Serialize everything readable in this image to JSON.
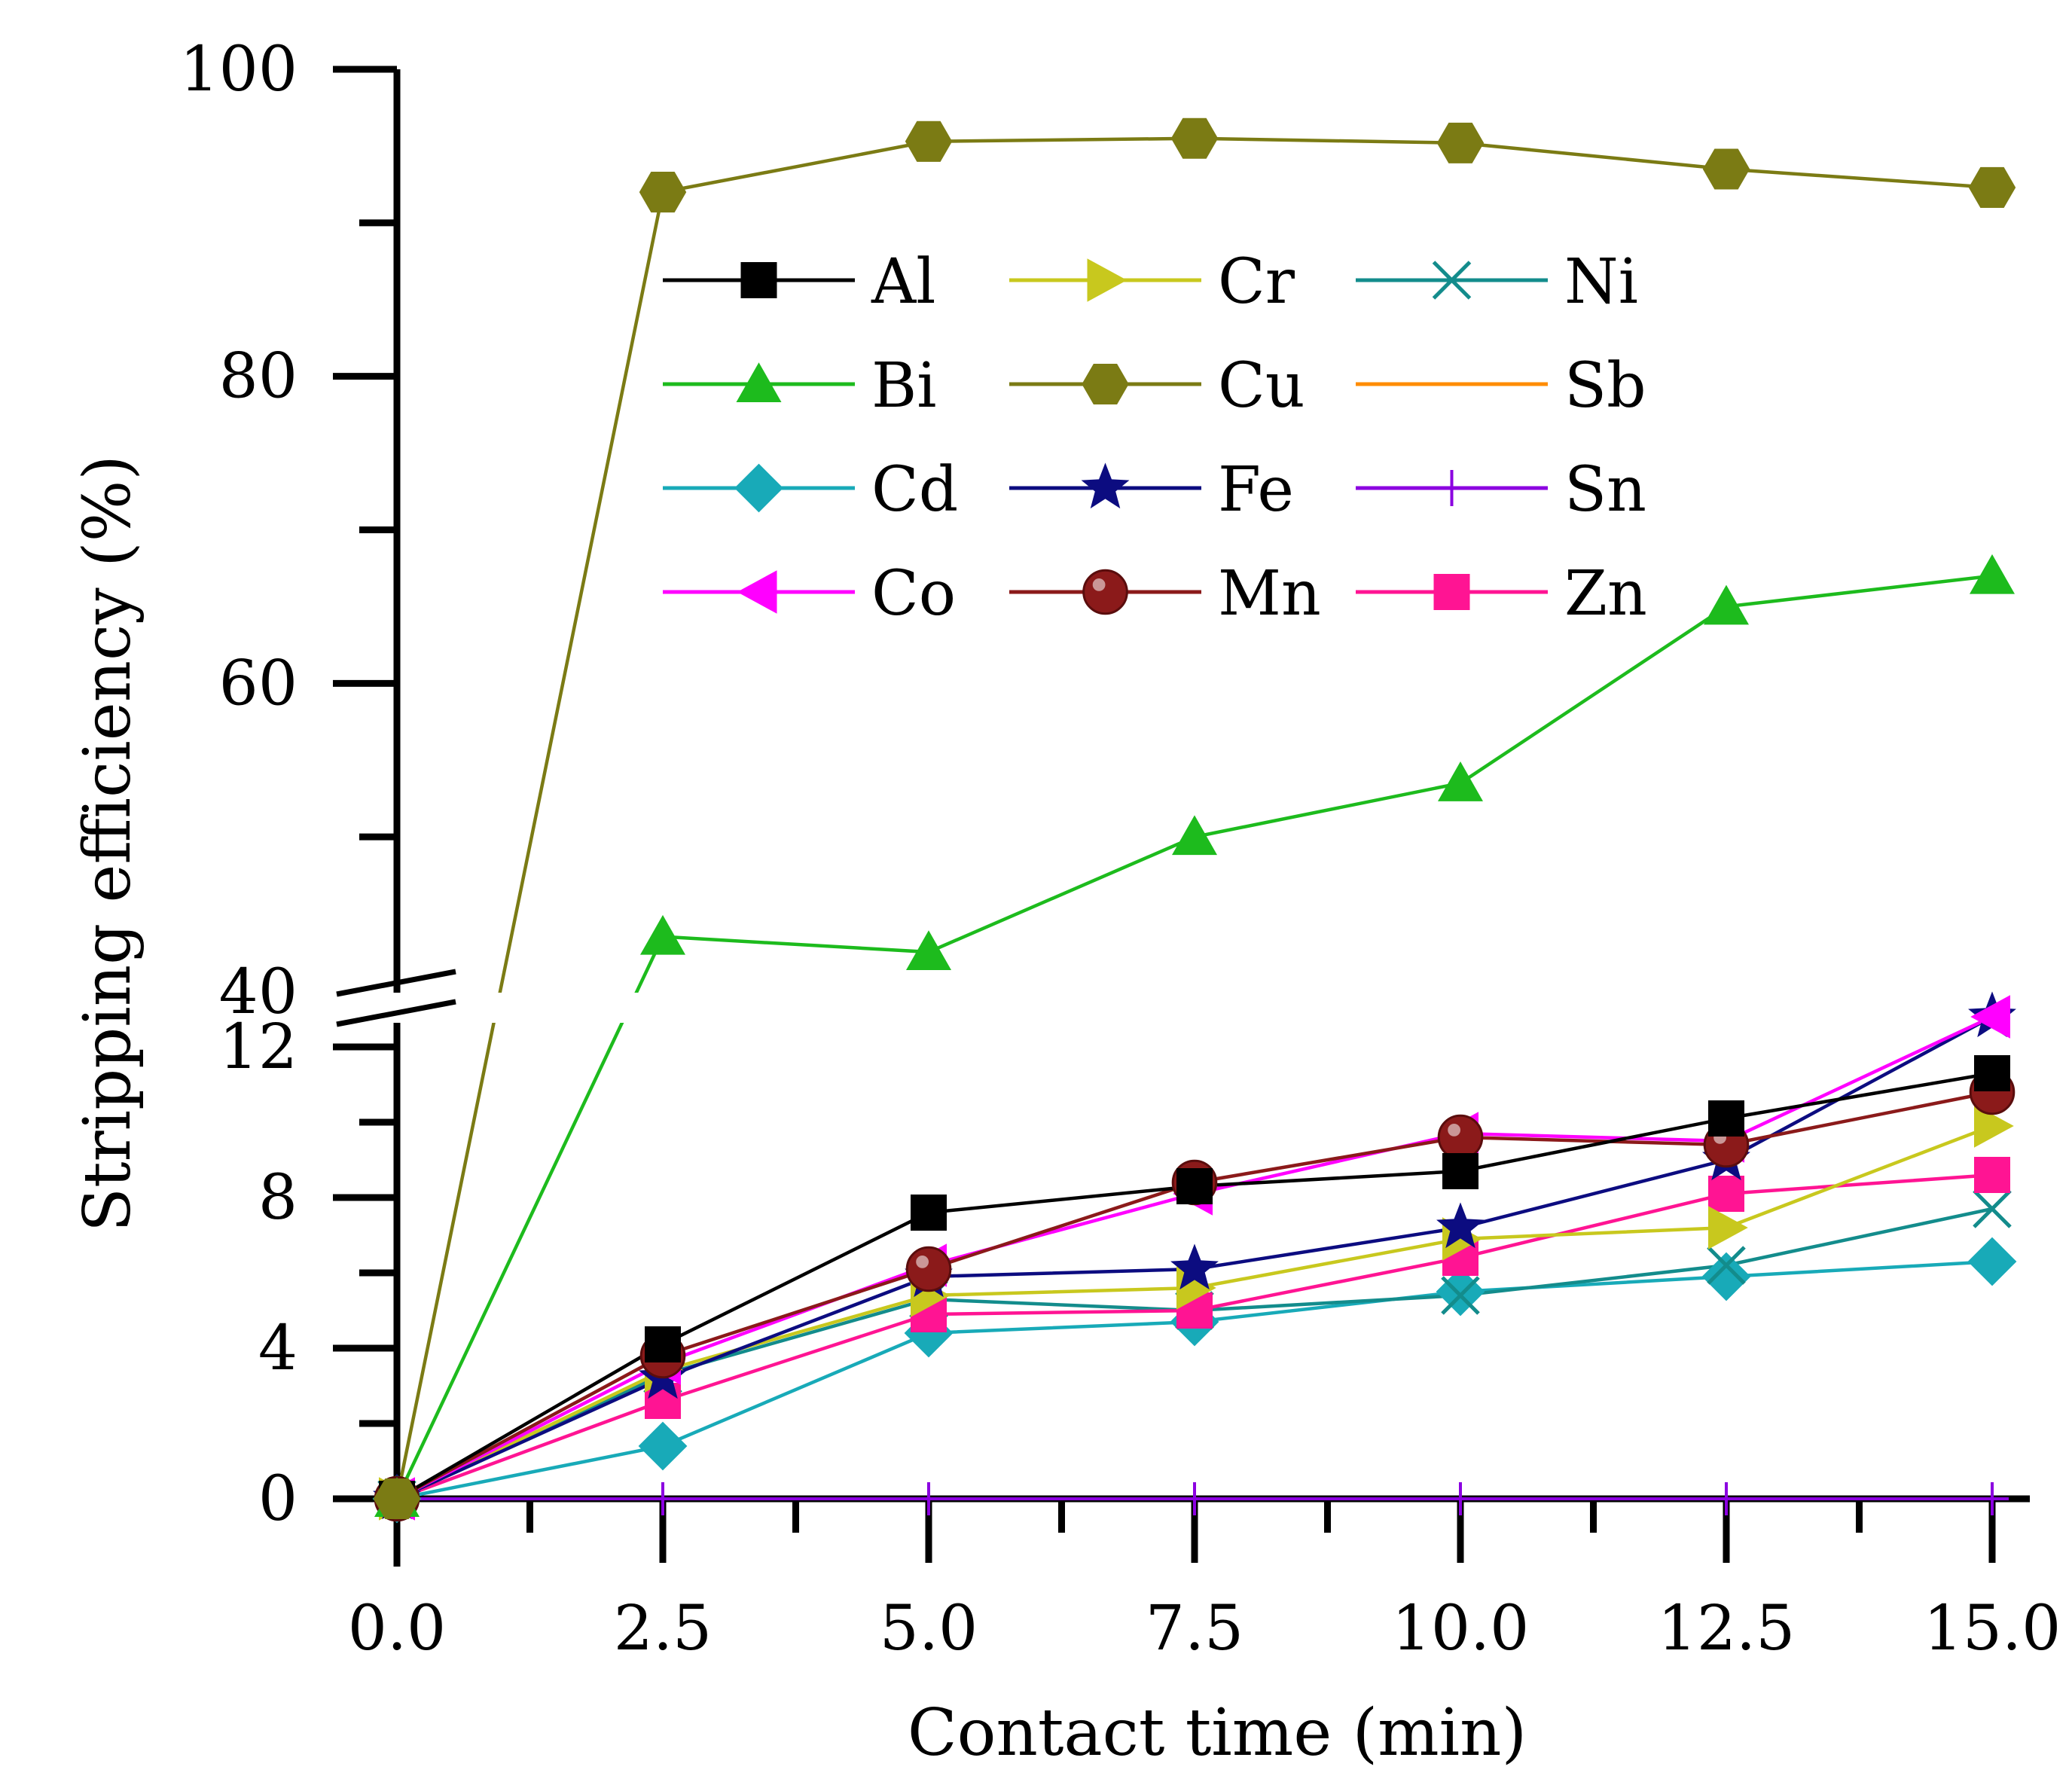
{
  "chart_data": {
    "type": "line",
    "xlabel": "Contact time (min)",
    "ylabel": "Stripping efficiency (%)",
    "x": [
      0.0,
      2.5,
      5.0,
      7.5,
      10.0,
      12.5,
      15.0
    ],
    "x_tick_labels": [
      "0.0",
      "2.5",
      "5.0",
      "7.5",
      "10.0",
      "12.5",
      "15.0"
    ],
    "xlim": [
      0,
      15
    ],
    "y_axis_break": {
      "lower_range": [
        0,
        12
      ],
      "upper_range": [
        40,
        100
      ],
      "lower_tick_labels": [
        "0",
        "4",
        "8",
        "12"
      ],
      "upper_tick_labels": [
        "40",
        "60",
        "80",
        "100"
      ]
    },
    "grid": false,
    "legend_placement": "top-center",
    "series": [
      {
        "name": "Al",
        "color": "#000000",
        "marker": "square",
        "values": [
          0,
          4.1,
          7.6,
          8.3,
          8.7,
          10.1,
          11.3
        ]
      },
      {
        "name": "Bi",
        "color": "#1dbb1d",
        "marker": "triangle-up",
        "values": [
          0,
          43.5,
          42.5,
          50.0,
          53.5,
          65.0,
          67.0
        ]
      },
      {
        "name": "Cd",
        "color": "#18aab8",
        "marker": "diamond",
        "values": [
          0,
          1.4,
          4.4,
          4.7,
          5.5,
          5.9,
          6.3
        ]
      },
      {
        "name": "Co",
        "color": "#ff00ff",
        "marker": "triangle-left",
        "values": [
          0,
          3.6,
          6.2,
          8.1,
          9.7,
          9.5,
          12.2
        ]
      },
      {
        "name": "Cr",
        "color": "#c8c81e",
        "marker": "triangle-right",
        "values": [
          0,
          3.4,
          5.4,
          5.6,
          6.9,
          7.2,
          9.9
        ]
      },
      {
        "name": "Cu",
        "color": "#7b7b14",
        "marker": "hexagon",
        "values": [
          0,
          92.0,
          95.3,
          95.5,
          95.2,
          93.5,
          92.3
        ]
      },
      {
        "name": "Fe",
        "color": "#0c0c80",
        "marker": "star",
        "values": [
          0,
          3.2,
          5.9,
          6.1,
          7.2,
          9.0,
          12.6
        ]
      },
      {
        "name": "Mn",
        "color": "#8b1a1a",
        "marker": "sphere",
        "values": [
          0,
          3.8,
          6.1,
          8.4,
          9.6,
          9.4,
          10.8
        ]
      },
      {
        "name": "Ni",
        "color": "#138c8c",
        "marker": "x",
        "values": [
          0,
          3.3,
          5.3,
          5.0,
          5.4,
          6.2,
          7.7
        ]
      },
      {
        "name": "Sb",
        "color": "#ff8c00",
        "marker": "none",
        "values": [
          0,
          0,
          0,
          0,
          0,
          0,
          0
        ]
      },
      {
        "name": "Sn",
        "color": "#8b00e0",
        "marker": "plus",
        "values": [
          0,
          0,
          0,
          0,
          0,
          0,
          0
        ]
      },
      {
        "name": "Zn",
        "color": "#ff1493",
        "marker": "square",
        "values": [
          0,
          2.6,
          4.9,
          5.0,
          6.4,
          8.1,
          8.6
        ]
      }
    ],
    "legend_order": [
      "Al",
      "Cr",
      "Ni",
      "Bi",
      "Cu",
      "Sb",
      "Cd",
      "Fe",
      "Sn",
      "Co",
      "Mn",
      "Zn"
    ]
  }
}
